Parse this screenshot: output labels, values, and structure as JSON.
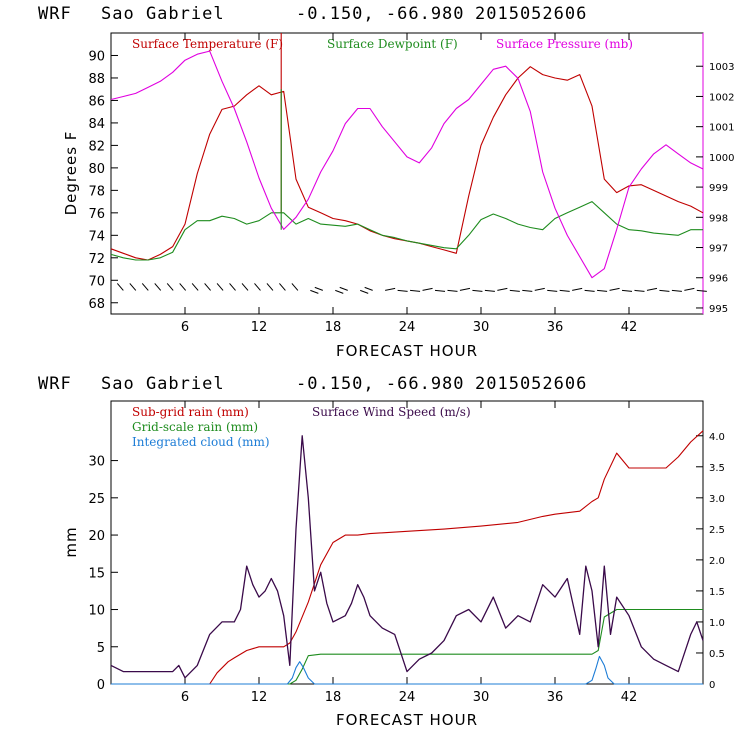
{
  "chart_data": [
    {
      "type": "line",
      "title": {
        "model": "WRF",
        "station": "Sao Gabriel",
        "coords": "-0.150, -66.980",
        "run": "2015052606"
      },
      "xlabel": "FORECAST HOUR",
      "ylabel": "Degrees F",
      "xlim": [
        0,
        48
      ],
      "x_ticks": [
        6,
        12,
        18,
        24,
        30,
        36,
        42
      ],
      "ylim": [
        67,
        92
      ],
      "y_ticks": [
        68,
        70,
        72,
        74,
        76,
        78,
        80,
        82,
        84,
        86,
        88,
        90
      ],
      "y2lim": [
        994.8,
        1004.1
      ],
      "y2_ticks": [
        995,
        996,
        997,
        998,
        999,
        1000,
        1001,
        1002,
        1003
      ],
      "legend": {
        "placement": "top"
      },
      "colors": {
        "temperature": "#c00000",
        "dewpoint": "#1e8c1e",
        "pressure": "#e000e0",
        "wind": "#000000"
      },
      "series": [
        {
          "name": "Surface Temperature (F)",
          "axis": "left",
          "x": [
            0,
            1,
            2,
            3,
            4,
            5,
            6,
            7,
            8,
            9,
            10,
            11,
            12,
            13,
            14,
            15,
            16,
            17,
            18,
            19,
            20,
            21,
            22,
            23,
            24,
            25,
            26,
            27,
            28,
            29,
            30,
            31,
            32,
            33,
            34,
            35,
            36,
            37,
            38,
            39,
            40,
            41,
            42,
            43,
            44,
            45,
            46,
            47,
            48
          ],
          "y": [
            72.8,
            72.4,
            72.0,
            71.8,
            72.3,
            73.0,
            75.0,
            79.5,
            83.0,
            85.2,
            85.5,
            86.5,
            87.3,
            86.5,
            86.8,
            79.0,
            76.5,
            76.0,
            75.5,
            75.3,
            75.0,
            74.4,
            74.0,
            73.7,
            73.5,
            73.3,
            73.0,
            72.7,
            72.4,
            77.5,
            82.0,
            84.5,
            86.5,
            88.0,
            89.0,
            88.3,
            88.0,
            87.8,
            88.3,
            85.5,
            79.0,
            77.8,
            78.4,
            78.5,
            78.0,
            77.5,
            77.0,
            76.6,
            76.0
          ]
        },
        {
          "name": "Surface Dewpoint (F)",
          "axis": "left",
          "x": [
            0,
            1,
            2,
            3,
            4,
            5,
            6,
            7,
            8,
            9,
            10,
            11,
            12,
            13,
            14,
            15,
            16,
            17,
            18,
            19,
            20,
            21,
            22,
            23,
            24,
            25,
            26,
            27,
            28,
            29,
            30,
            31,
            32,
            33,
            34,
            35,
            36,
            37,
            38,
            39,
            40,
            41,
            42,
            43,
            44,
            45,
            46,
            47,
            48
          ],
          "y": [
            72.3,
            72.0,
            71.8,
            71.8,
            72.0,
            72.5,
            74.5,
            75.3,
            75.3,
            75.7,
            75.5,
            75.0,
            75.3,
            76.0,
            76.0,
            75.0,
            75.5,
            75.0,
            74.9,
            74.8,
            75.0,
            74.5,
            74.0,
            73.8,
            73.5,
            73.3,
            73.1,
            72.9,
            72.8,
            74.0,
            75.4,
            75.9,
            75.5,
            75.0,
            74.7,
            74.5,
            75.5,
            76.0,
            76.5,
            77.0,
            76.0,
            75.0,
            74.5,
            74.4,
            74.2,
            74.1,
            74.0,
            74.5,
            74.5
          ]
        },
        {
          "name": "Surface Pressure (mb)",
          "axis": "right",
          "x": [
            0,
            1,
            2,
            3,
            4,
            5,
            6,
            7,
            8,
            9,
            10,
            11,
            12,
            13,
            14,
            15,
            16,
            17,
            18,
            19,
            20,
            21,
            22,
            23,
            24,
            25,
            26,
            27,
            28,
            29,
            30,
            31,
            32,
            33,
            34,
            35,
            36,
            37,
            38,
            39,
            40,
            41,
            42,
            43,
            44,
            45,
            46,
            47,
            48
          ],
          "y": [
            1001.9,
            1002.0,
            1002.1,
            1002.3,
            1002.5,
            1002.8,
            1003.2,
            1003.4,
            1003.5,
            1002.5,
            1001.6,
            1000.5,
            999.3,
            998.3,
            997.6,
            998.0,
            998.6,
            999.5,
            1000.2,
            1001.1,
            1001.6,
            1001.6,
            1001.0,
            1000.5,
            1000.0,
            999.8,
            1000.3,
            1001.1,
            1001.6,
            1001.9,
            1002.4,
            1002.9,
            1003.0,
            1002.6,
            1001.5,
            999.5,
            998.3,
            997.4,
            996.7,
            996.0,
            996.3,
            997.6,
            999.0,
            999.6,
            1000.1,
            1000.4,
            1000.1,
            999.8,
            999.6
          ]
        }
      ],
      "spike_annotations": [
        {
          "series": "Surface Temperature (F)",
          "x": 13.8,
          "y": 92
        },
        {
          "series": "Surface Dewpoint (F)",
          "x": 13.8,
          "y": 87
        }
      ],
      "wind_barbs": {
        "color": "#000000",
        "count": 47
      }
    },
    {
      "type": "line",
      "title": {
        "model": "WRF",
        "station": "Sao Gabriel",
        "coords": "-0.150, -66.980",
        "run": "2015052606"
      },
      "xlabel": "FORECAST HOUR",
      "ylabel": "mm",
      "xlim": [
        0,
        48
      ],
      "x_ticks": [
        6,
        12,
        18,
        24,
        30,
        36,
        42
      ],
      "ylim": [
        0,
        38
      ],
      "y_ticks": [
        0,
        5,
        10,
        15,
        20,
        25,
        30
      ],
      "y2lim": [
        0,
        4.56
      ],
      "y2_ticks": [
        "0",
        "0.5",
        "1.0",
        "1.5",
        "2.0",
        "2.5",
        "3.0",
        "3.5",
        "4.0"
      ],
      "legend": {
        "placement": "top-left"
      },
      "colors": {
        "subgrid": "#c00000",
        "gridscale": "#1e8c1e",
        "cloud": "#1c7cd6",
        "wind": "#3a0a4a"
      },
      "series": [
        {
          "name": "Sub-grid rain (mm)",
          "axis": "left",
          "x": [
            0,
            8,
            8.6,
            9.5,
            10,
            11,
            12,
            14,
            14.5,
            15,
            16,
            17,
            18,
            19,
            20,
            21,
            24,
            27,
            30,
            33,
            35,
            36,
            37,
            38,
            39,
            39.5,
            40,
            41,
            42,
            43,
            44,
            45,
            46,
            47,
            48
          ],
          "y": [
            0,
            0,
            1.5,
            3,
            3.5,
            4.5,
            5,
            5,
            5.5,
            7,
            11,
            16,
            19,
            20,
            20,
            20.2,
            20.5,
            20.8,
            21.2,
            21.7,
            22.5,
            22.8,
            23,
            23.2,
            24.5,
            25,
            27.5,
            31,
            29,
            29,
            29,
            29,
            30.5,
            32.5,
            34
          ]
        },
        {
          "name": "Grid-scale rain (mm)",
          "axis": "left",
          "x": [
            0,
            14.5,
            15,
            15.5,
            16,
            17,
            20,
            25,
            30,
            35,
            38,
            39,
            39.5,
            40,
            41,
            42,
            45,
            48
          ],
          "y": [
            0,
            0,
            0.5,
            2,
            3.8,
            4,
            4,
            4,
            4,
            4,
            4,
            4,
            4.5,
            9,
            10,
            10,
            10,
            10
          ]
        },
        {
          "name": "Integrated cloud (mm)",
          "axis": "left",
          "x": [
            0,
            14.3,
            14.7,
            15,
            15.3,
            15.6,
            16,
            16.5,
            38.5,
            39,
            39.3,
            39.6,
            40,
            40.3,
            40.8,
            48
          ],
          "y": [
            0,
            0,
            0.8,
            2.2,
            3.0,
            2.2,
            0.8,
            0,
            0,
            0.5,
            2.0,
            3.7,
            2.5,
            0.8,
            0,
            0
          ]
        },
        {
          "name": "Surface Wind Speed (m/s)",
          "axis": "right",
          "x": [
            0,
            1,
            2,
            3,
            4,
            5,
            5.5,
            6,
            7,
            8,
            9,
            10,
            10.5,
            11,
            11.5,
            12,
            12.5,
            13,
            13.5,
            14,
            14.5,
            15,
            15.5,
            16,
            16.5,
            17,
            17.5,
            18,
            19,
            19.5,
            20,
            20.5,
            21,
            22,
            23,
            24,
            25,
            26,
            27,
            28,
            29,
            30,
            31,
            32,
            33,
            34,
            35,
            36,
            37,
            38,
            38.5,
            39,
            39.5,
            40,
            40.5,
            41,
            42,
            43,
            44,
            45,
            46,
            47,
            47.5,
            48
          ],
          "y": [
            0.3,
            0.2,
            0.2,
            0.2,
            0.2,
            0.2,
            0.3,
            0.1,
            0.3,
            0.8,
            1.0,
            1.0,
            1.2,
            1.9,
            1.6,
            1.4,
            1.5,
            1.7,
            1.5,
            1.1,
            0.3,
            2.5,
            4.0,
            3.0,
            1.5,
            1.8,
            1.3,
            1.0,
            1.1,
            1.3,
            1.6,
            1.4,
            1.1,
            0.9,
            0.8,
            0.2,
            0.4,
            0.5,
            0.7,
            1.1,
            1.2,
            1.0,
            1.4,
            0.9,
            1.1,
            1.0,
            1.6,
            1.4,
            1.7,
            0.8,
            1.9,
            1.5,
            0.6,
            1.9,
            0.8,
            1.4,
            1.1,
            0.6,
            0.4,
            0.3,
            0.2,
            0.8,
            1.0,
            0.7
          ]
        }
      ]
    }
  ]
}
